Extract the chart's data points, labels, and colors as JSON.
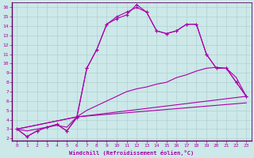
{
  "xlabel": "Windchill (Refroidissement éolien,°C)",
  "bg_color": "#cce8e8",
  "line_color": "#aa00aa",
  "grid_color": "#aacccc",
  "spine_color": "#660066",
  "xlim": [
    -0.5,
    23.5
  ],
  "ylim": [
    1.8,
    16.5
  ],
  "xticks": [
    0,
    1,
    2,
    3,
    4,
    5,
    6,
    7,
    8,
    9,
    10,
    11,
    12,
    13,
    14,
    15,
    16,
    17,
    18,
    19,
    20,
    21,
    22,
    23
  ],
  "yticks": [
    2,
    3,
    4,
    5,
    6,
    7,
    8,
    9,
    10,
    11,
    12,
    13,
    14,
    15,
    16
  ],
  "line1_x": [
    0,
    1,
    2,
    3,
    4,
    5,
    6,
    7,
    8,
    9,
    10,
    11,
    12,
    13,
    14,
    15,
    16,
    17,
    18,
    19,
    20,
    21,
    22,
    23
  ],
  "line1_y": [
    3.0,
    2.2,
    2.8,
    3.2,
    3.5,
    2.8,
    4.2,
    9.5,
    11.5,
    14.2,
    14.8,
    15.2,
    16.3,
    15.5,
    13.5,
    13.2,
    13.5,
    14.2,
    14.2,
    11.0,
    9.5,
    9.5,
    8.0,
    6.5
  ],
  "line2_x": [
    0,
    1,
    2,
    3,
    4,
    5,
    6,
    7,
    8,
    9,
    10,
    11,
    12,
    13,
    14,
    15,
    16,
    17,
    18,
    19,
    20,
    21,
    22,
    23
  ],
  "line2_y": [
    3.0,
    2.2,
    2.8,
    3.2,
    3.5,
    2.8,
    4.3,
    9.5,
    11.5,
    14.2,
    15.0,
    15.5,
    16.0,
    15.5,
    13.5,
    13.2,
    13.5,
    14.2,
    14.2,
    11.0,
    9.5,
    9.5,
    8.0,
    6.5
  ],
  "line3_x": [
    0,
    6,
    23
  ],
  "line3_y": [
    3.0,
    4.3,
    6.5
  ],
  "line4_x": [
    0,
    6,
    23
  ],
  "line4_y": [
    3.0,
    4.3,
    5.8
  ],
  "line5_x": [
    0,
    1,
    2,
    3,
    4,
    5,
    6,
    7,
    8,
    9,
    10,
    11,
    12,
    13,
    14,
    15,
    16,
    17,
    18,
    19,
    20,
    21,
    22,
    23
  ],
  "line5_y": [
    3.0,
    2.8,
    3.0,
    3.2,
    3.4,
    3.2,
    4.3,
    5.0,
    5.5,
    6.0,
    6.5,
    7.0,
    7.3,
    7.5,
    7.8,
    8.0,
    8.5,
    8.8,
    9.2,
    9.5,
    9.6,
    9.5,
    8.5,
    6.5
  ]
}
